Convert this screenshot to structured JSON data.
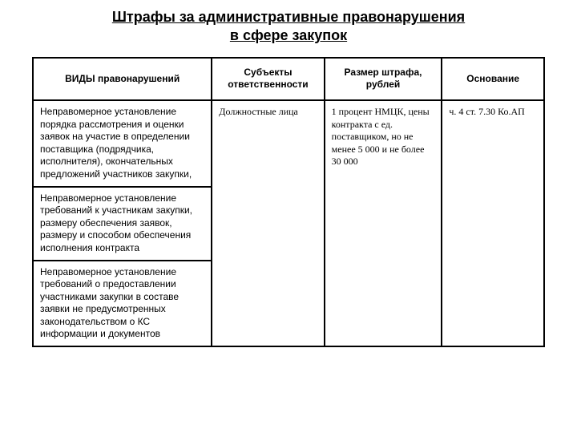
{
  "title_line1": "Штрафы за административные правонарушения",
  "title_line2": "в сфере закупок",
  "headers": {
    "c1": "ВИДЫ правонарушений",
    "c2": "Субъекты ответственности",
    "c3": "Размер штрафа, рублей",
    "c4": "Основание"
  },
  "rows": {
    "r1": {
      "c1": "Неправомерное установление порядка рассмотрения и оценки заявок на участие в определении поставщика (подрядчика, исполнителя), окончательных предложений участников закупки,",
      "c2": "Должностные лица",
      "c3": "1 процент НМЦК, цены контракта с ед. поставщиком, но не менее 5 000 и не более 30 000",
      "c4": "ч. 4 ст. 7.30 Ко.АП"
    },
    "r2": {
      "c1": "Неправомерное установление требований к участникам закупки, размеру обеспечения заявок, размеру и способом обеспечения исполнения контракта"
    },
    "r3": {
      "c1": "Неправомерное установление требований о предоставлении участниками закупки в составе заявки не предусмотренных законодательством о КС информации и документов"
    }
  },
  "style": {
    "border_color": "#000000",
    "background": "#ffffff",
    "title_fontsize": 18,
    "cell_fontsize": 12,
    "col_widths_pct": [
      35,
      22,
      23,
      20
    ]
  }
}
